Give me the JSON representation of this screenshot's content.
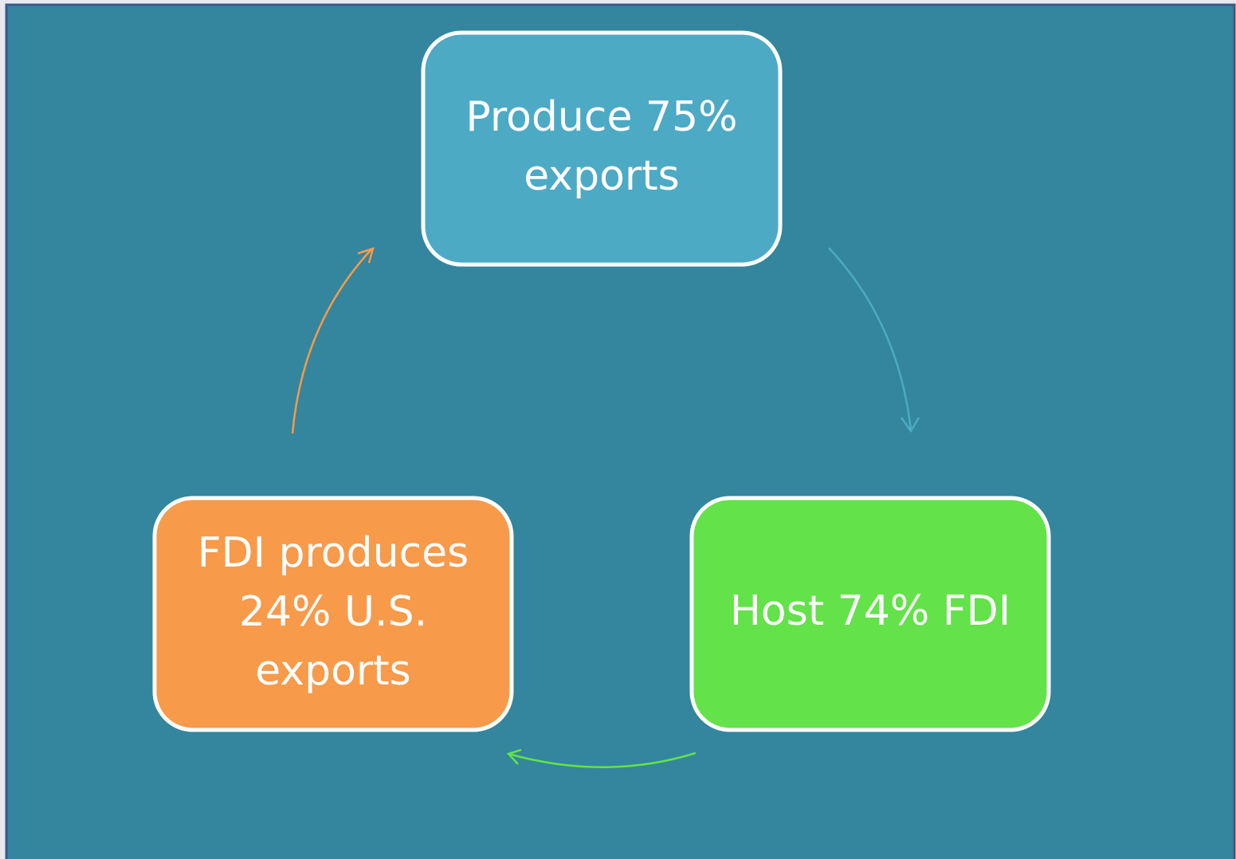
{
  "nodes": [
    {
      "label": [
        "Produce 75%",
        "exports"
      ]
    },
    {
      "label": [
        "Host 74% FDI"
      ]
    },
    {
      "label": [
        "FDI produces",
        "24% U.S.",
        "exports"
      ]
    }
  ]
}
